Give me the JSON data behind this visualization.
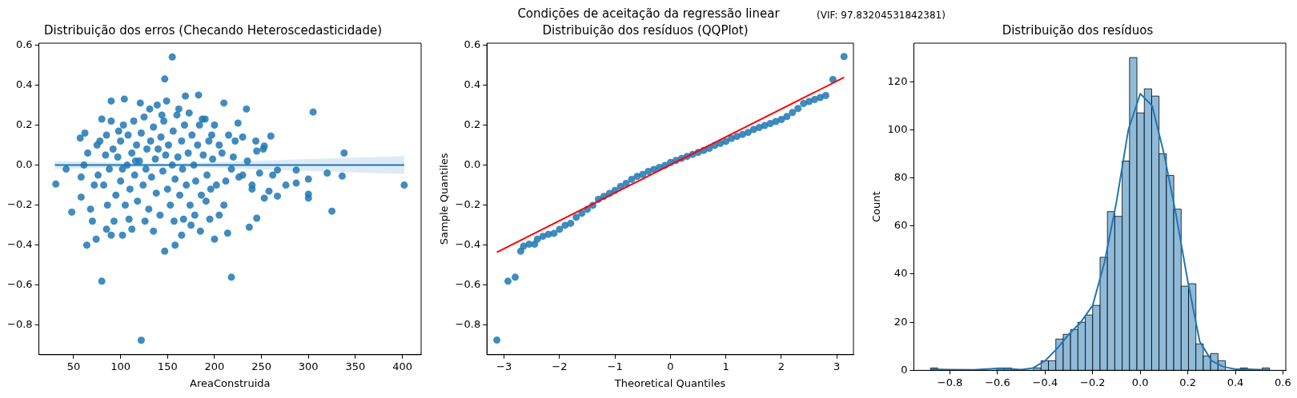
{
  "chart_data": [
    {
      "type": "scatter",
      "title": "Distribuição dos erros (Checando Heteroscedasticidade)",
      "xlabel": "AreaConstruida",
      "xlim": [
        13,
        420
      ],
      "xticks": [
        50,
        100,
        150,
        200,
        250,
        300,
        350,
        400
      ],
      "ylim": [
        -0.947,
        0.609
      ],
      "yticks": [
        {
          "value": -0.8,
          "label": "−0.8"
        },
        {
          "value": -0.6,
          "label": "−0.6"
        },
        {
          "value": -0.4,
          "label": "−0.4"
        },
        {
          "value": -0.2,
          "label": "−0.2"
        },
        {
          "value": 0,
          "label": "0.0"
        },
        0.2,
        0.4,
        0.6
      ],
      "grid": false,
      "legend": false,
      "series": [
        {
          "marker": "circle",
          "color": "#1f77b4",
          "x": [
            155,
            147,
            122,
            80,
            218,
            305,
            338,
            336,
            325,
            320,
            402,
            300,
            300,
            300,
            287,
            287,
            276,
            267,
            267,
            260,
            253,
            253,
            245,
            237,
            234,
            31,
            42,
            48,
            64,
            57,
            62,
            74,
            147,
            158,
            210,
            183,
            169,
            104,
            90,
            121,
            200,
            214,
            225,
            245,
            240,
            230,
            220,
            210,
            205,
            195,
            185,
            175,
            165,
            135,
            112,
            102,
            90,
            85,
            68,
            70,
            58,
            58,
            61,
            65,
            75,
            78,
            80,
            82,
            85,
            88,
            90,
            92,
            95,
            97,
            100,
            100,
            103,
            105,
            107,
            108,
            110,
            112,
            114,
            115,
            117,
            118,
            120,
            122,
            124,
            125,
            127,
            128,
            130,
            132,
            133,
            135,
            137,
            138,
            140,
            142,
            143,
            145,
            146,
            148,
            150,
            151,
            153,
            155,
            156,
            158,
            160,
            161,
            163,
            165,
            166,
            168,
            170,
            172,
            174,
            176,
            178,
            180,
            182,
            184,
            186,
            188,
            190,
            192,
            194,
            196,
            198,
            200,
            202,
            205,
            208,
            212,
            215,
            218,
            222,
            226,
            230,
            235,
            240,
            244,
            248,
            252,
            258,
            262,
            72,
            76,
            84,
            86,
            93,
            98,
            102,
            109,
            116,
            126,
            131,
            139,
            144,
            149,
            157,
            162,
            167,
            173,
            179,
            187,
            191,
            197
          ],
          "values": [
            0.54,
            0.43,
            -0.875,
            -0.58,
            -0.56,
            0.265,
            0.06,
            -0.055,
            -0.23,
            -0.04,
            -0.1,
            -0.07,
            -0.145,
            -0.165,
            -0.025,
            -0.09,
            -0.1,
            -0.025,
            -0.155,
            0.145,
            0.095,
            -0.165,
            -0.265,
            -0.31,
            0.28,
            -0.095,
            -0.02,
            -0.235,
            -0.4,
            0.135,
            0.16,
            -0.37,
            -0.43,
            -0.4,
            0.31,
            0.35,
            0.345,
            0.33,
            0.32,
            0.31,
            -0.37,
            -0.34,
            0.21,
            0.07,
            -0.1,
            -0.05,
            0.04,
            -0.2,
            -0.25,
            -0.27,
            -0.33,
            -0.3,
            -0.35,
            -0.33,
            -0.32,
            -0.35,
            -0.35,
            -0.32,
            -0.22,
            -0.28,
            -0.16,
            -0.06,
            0.0,
            0.06,
            0.1,
            0.12,
            0.23,
            -0.1,
            0.15,
            -0.02,
            0.22,
            0.08,
            -0.15,
            0.04,
            0.12,
            -0.08,
            0.2,
            -0.2,
            0.0,
            0.15,
            -0.12,
            0.06,
            0.22,
            -0.05,
            0.1,
            -0.18,
            0.02,
            0.16,
            -0.1,
            0.24,
            -0.02,
            0.08,
            -0.22,
            0.12,
            -0.06,
            0.19,
            0.03,
            -0.14,
            0.08,
            -0.25,
            0.14,
            -0.03,
            0.22,
            0.05,
            -0.12,
            0.1,
            -0.2,
            0.0,
            0.17,
            -0.07,
            0.25,
            0.04,
            -0.15,
            0.12,
            -0.02,
            0.2,
            -0.1,
            0.06,
            -0.2,
            0.15,
            0.0,
            -0.08,
            0.1,
            0.2,
            -0.15,
            0.05,
            0.23,
            -0.05,
            0.12,
            -0.12,
            0.03,
            0.2,
            -0.1,
            0.1,
            0.06,
            -0.08,
            0.15,
            -0.02,
            0.12,
            -0.06,
            0.14,
            0.02,
            -0.12,
            0.12,
            -0.04,
            0.08,
            -0.13,
            -0.05,
            -0.1,
            -0.05,
            0.05,
            -0.2,
            -0.28,
            0.17,
            -0.02,
            -0.27,
            0.02,
            -0.28,
            0.28,
            0.3,
            0.25,
            0.32,
            -0.28,
            0.28,
            -0.27,
            0.26,
            -0.25,
            0.23,
            -0.18,
            0.15
          ]
        },
        {
          "type": "line",
          "color": "#1f77b4",
          "x": [
            30,
            150,
            402
          ],
          "values": [
            0,
            0,
            0
          ],
          "lower": [
            -0.02,
            -0.007,
            -0.045
          ],
          "upper": [
            0.02,
            0.007,
            0.045
          ]
        }
      ]
    },
    {
      "type": "scatter",
      "title": "Distribuição dos resíduos (QQPlot)",
      "xlabel": "Theoretical Quantiles",
      "ylabel": "Sample Quantiles",
      "annotations": [
        "Condições de aceitação da regressão linear",
        "(VIF: 97.83204531842381)"
      ],
      "xlim": [
        -3.31,
        3.3
      ],
      "xticks": [
        {
          "value": -3,
          "label": "−3"
        },
        {
          "value": -2,
          "label": "−2"
        },
        {
          "value": -1,
          "label": "−1"
        },
        0,
        1,
        2,
        3
      ],
      "ylim": [
        -0.948,
        0.612
      ],
      "yticks": [
        {
          "value": -0.8,
          "label": "−0.8"
        },
        {
          "value": -0.6,
          "label": "−0.6"
        },
        {
          "value": -0.4,
          "label": "−0.4"
        },
        {
          "value": -0.2,
          "label": "−0.2"
        },
        {
          "value": 0,
          "label": "0.0"
        },
        0.2,
        0.4,
        0.6
      ],
      "grid": false,
      "legend": false,
      "series": [
        {
          "marker": "circle",
          "color": "#1f77b4",
          "x": [
            -3.13,
            -2.93,
            -2.8,
            -2.7,
            -2.65,
            -2.55,
            -2.45,
            -2.4,
            -2.3,
            -2.2,
            -2.1,
            -2.0,
            -1.9,
            -1.8,
            -1.7,
            -1.6,
            -1.5,
            -1.4,
            -1.3,
            -1.2,
            -1.1,
            -1.0,
            -0.9,
            -0.8,
            -0.7,
            -0.6,
            -0.5,
            -0.4,
            -0.3,
            -0.2,
            -0.1,
            0,
            0.1,
            0.2,
            0.3,
            0.4,
            0.5,
            0.6,
            0.7,
            0.8,
            0.9,
            1.0,
            1.1,
            1.2,
            1.3,
            1.4,
            1.5,
            1.6,
            1.7,
            1.8,
            1.9,
            2.0,
            2.1,
            2.2,
            2.3,
            2.4,
            2.5,
            2.6,
            2.7,
            2.8,
            2.93,
            3.13
          ],
          "values": [
            -0.875,
            -0.58,
            -0.56,
            -0.43,
            -0.405,
            -0.395,
            -0.395,
            -0.37,
            -0.355,
            -0.345,
            -0.34,
            -0.32,
            -0.3,
            -0.29,
            -0.26,
            -0.24,
            -0.22,
            -0.2,
            -0.17,
            -0.155,
            -0.14,
            -0.125,
            -0.105,
            -0.09,
            -0.07,
            -0.055,
            -0.045,
            -0.03,
            -0.02,
            -0.01,
            0.0,
            0.015,
            0.025,
            0.035,
            0.045,
            0.055,
            0.065,
            0.075,
            0.085,
            0.1,
            0.11,
            0.12,
            0.135,
            0.145,
            0.155,
            0.165,
            0.18,
            0.19,
            0.2,
            0.21,
            0.22,
            0.23,
            0.245,
            0.265,
            0.285,
            0.31,
            0.32,
            0.33,
            0.34,
            0.35,
            0.43,
            0.545
          ]
        },
        {
          "type": "line",
          "color": "#ff0000",
          "x": [
            -3.13,
            3.13
          ],
          "values": [
            -0.435,
            0.44
          ]
        }
      ]
    },
    {
      "type": "histogram",
      "title": "Distribuição dos resíduos",
      "ylabel": "Count",
      "bins": [
        -0.882,
        -0.851,
        -0.82,
        -0.789,
        -0.758,
        -0.727,
        -0.696,
        -0.665,
        -0.634,
        -0.603,
        -0.572,
        -0.541,
        -0.51,
        -0.479,
        -0.448,
        -0.417,
        -0.386,
        -0.355,
        -0.324,
        -0.293,
        -0.262,
        -0.231,
        -0.2,
        -0.169,
        -0.138,
        -0.107,
        -0.076,
        -0.045,
        -0.014,
        0.017,
        0.048,
        0.079,
        0.11,
        0.141,
        0.172,
        0.203,
        0.234,
        0.265,
        0.296,
        0.327,
        0.358,
        0.389,
        0.42,
        0.451,
        0.482,
        0.513,
        0.544
      ],
      "xlim": [
        -0.952,
        0.612
      ],
      "xticks": [
        {
          "value": -0.8,
          "label": "−0.8"
        },
        {
          "value": -0.6,
          "label": "−0.6"
        },
        {
          "value": -0.4,
          "label": "−0.4"
        },
        {
          "value": -0.2,
          "label": "−0.2"
        },
        {
          "value": 0,
          "label": "0.0"
        },
        0.2,
        0.4,
        0.6
      ],
      "ylim": [
        0,
        136
      ],
      "yticks": [
        0,
        20,
        40,
        60,
        80,
        100,
        120
      ],
      "grid": false,
      "legend": false,
      "series": [
        {
          "color": "#8fbbd9",
          "values": [
            1,
            0,
            0,
            0,
            0,
            0,
            0,
            0,
            0,
            1,
            1,
            0,
            0,
            0,
            1,
            4,
            4,
            13,
            15,
            17,
            20,
            23,
            27,
            47,
            66,
            64,
            87,
            130,
            107,
            117,
            114,
            90,
            81,
            67,
            35,
            36,
            11,
            6,
            7,
            4,
            0,
            0,
            1,
            0,
            0,
            1
          ]
        },
        {
          "type": "line",
          "color": "#1f77b4",
          "x": [
            -0.88,
            -0.8,
            -0.7,
            -0.6,
            -0.55,
            -0.5,
            -0.45,
            -0.4,
            -0.35,
            -0.3,
            -0.25,
            -0.2,
            -0.15,
            -0.1,
            -0.05,
            0,
            0.05,
            0.1,
            0.15,
            0.2,
            0.25,
            0.3,
            0.35,
            0.4,
            0.45,
            0.5,
            0.54
          ],
          "values": [
            0.5,
            0.3,
            0.2,
            0.8,
            0.6,
            0.3,
            1,
            4,
            9,
            15,
            20,
            27,
            45,
            70,
            100,
            115,
            110,
            90,
            65,
            37,
            12,
            4,
            1.5,
            0.5,
            0.5,
            0.3,
            0.2
          ]
        }
      ]
    }
  ]
}
